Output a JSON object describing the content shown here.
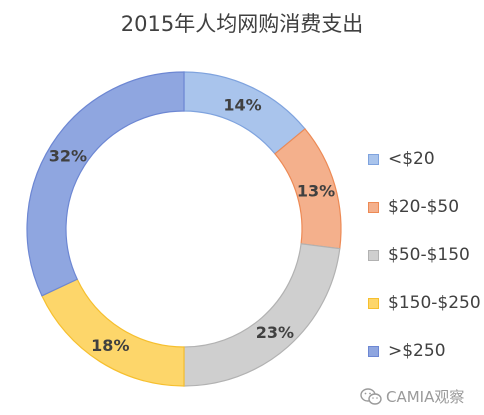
{
  "chart_data": {
    "type": "pie",
    "title": "2015年人均网购消费支出",
    "donut": true,
    "legend_position": "right",
    "categories": [
      "<$20",
      "$20-$50",
      "$50-$150",
      "$150-$250",
      ">$250"
    ],
    "values": [
      14,
      13,
      23,
      18,
      32
    ],
    "value_labels": [
      "14%",
      "13%",
      "23%",
      "18%",
      "32%"
    ],
    "colors": [
      "#a9c4ec",
      "#f4b08c",
      "#cfcfcf",
      "#fdd66a",
      "#8fa6e0"
    ],
    "edge_colors": [
      "#7fa3de",
      "#ed8a55",
      "#b2b2b2",
      "#f6bf2e",
      "#6d87d3"
    ]
  },
  "watermark": {
    "text": "CAMIA观察",
    "icon": "wechat-icon"
  }
}
